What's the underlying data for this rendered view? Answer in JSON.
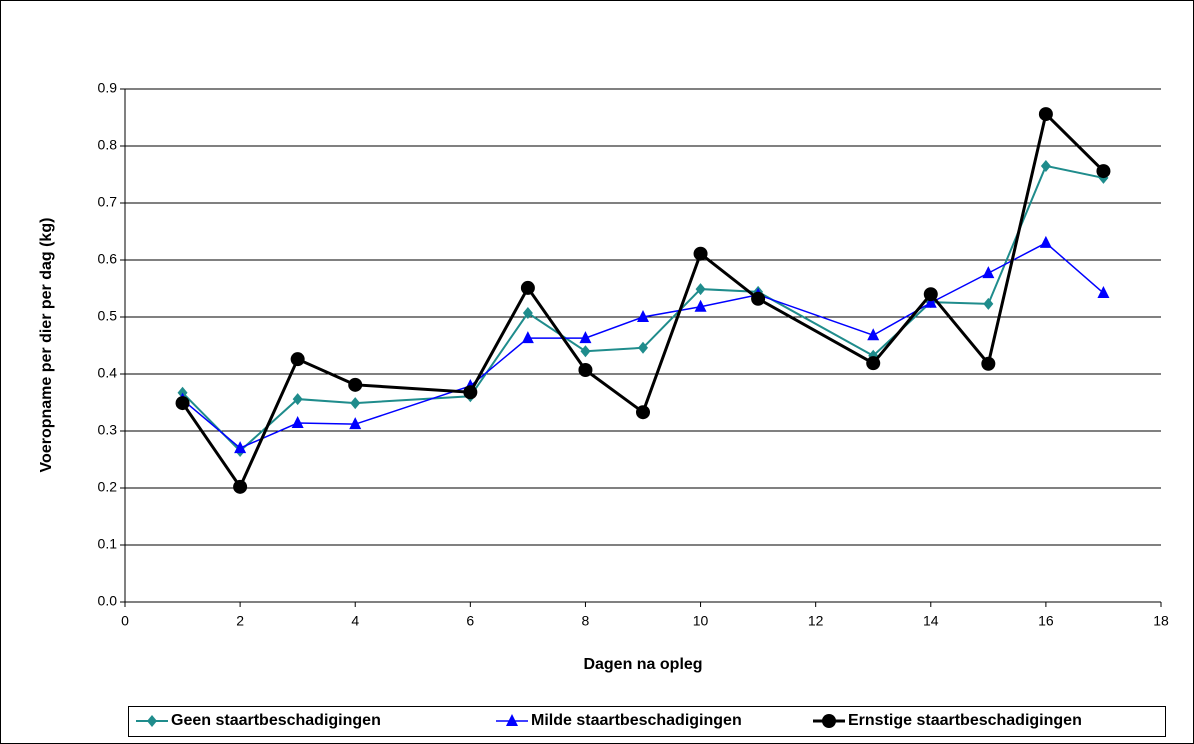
{
  "chart_data": {
    "type": "line",
    "xlabel": "Dagen na opleg",
    "ylabel": "Voeropname per dier per dag (kg)",
    "x": [
      1,
      2,
      3,
      4,
      6,
      7,
      8,
      9,
      10,
      11,
      13,
      14,
      15,
      16,
      17
    ],
    "series": [
      {
        "name": "Geen staartbeschadigingen",
        "color": "#1f8c8c",
        "marker": "diamond",
        "values": [
          0.367,
          0.265,
          0.356,
          0.349,
          0.361,
          0.507,
          0.44,
          0.446,
          0.549,
          0.544,
          0.432,
          0.526,
          0.523,
          0.765,
          0.744
        ]
      },
      {
        "name": "Milde staartbeschadigingen",
        "color": "#0000ff",
        "marker": "triangle",
        "values": [
          0.355,
          0.27,
          0.314,
          0.312,
          0.379,
          0.463,
          0.463,
          0.5,
          0.518,
          0.539,
          0.468,
          0.525,
          0.577,
          0.63,
          0.542
        ]
      },
      {
        "name": "Ernstige staartbeschadigingen",
        "color": "#000000",
        "marker": "circle",
        "values": [
          0.349,
          0.202,
          0.426,
          0.381,
          0.368,
          0.551,
          0.407,
          0.333,
          0.611,
          0.532,
          0.419,
          0.54,
          0.418,
          0.856,
          0.756
        ]
      }
    ],
    "xlim": [
      0,
      18
    ],
    "xticks": [
      0,
      2,
      4,
      6,
      8,
      10,
      12,
      14,
      16,
      18
    ],
    "ylim": [
      0,
      0.9
    ],
    "yticks": [
      {
        "value": 0,
        "label": "0.0"
      },
      0.1,
      0.2,
      0.3,
      0.4,
      0.5,
      0.6,
      0.7,
      0.8,
      0.9
    ],
    "grid": true,
    "legend": "bottom"
  }
}
